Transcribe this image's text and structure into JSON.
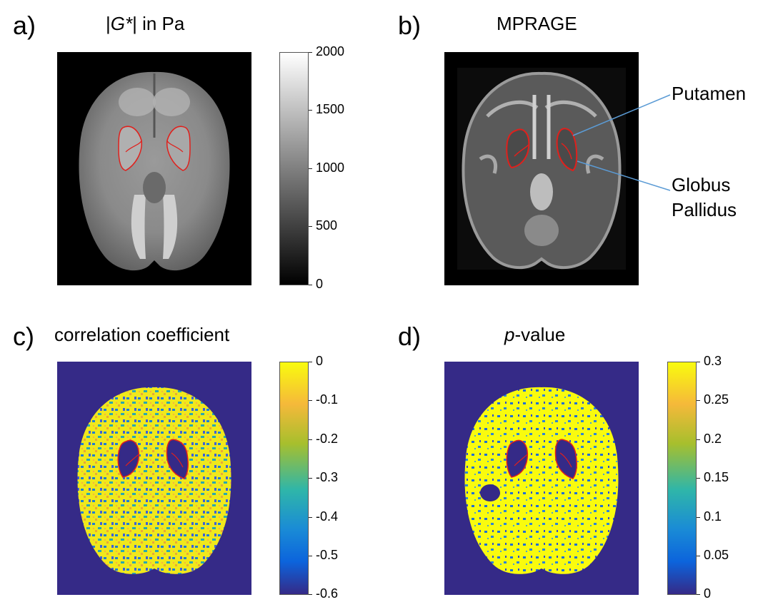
{
  "panels": {
    "a": {
      "letter": "a)",
      "title_prefix": "|",
      "title_symbol": "G*",
      "title_suffix": "| in Pa",
      "colorbar": {
        "ticks": [
          "2000",
          "1500",
          "1000",
          "500",
          "0"
        ],
        "colormap": "gray"
      }
    },
    "b": {
      "letter": "b)",
      "title": "MPRAGE",
      "annotations": {
        "putamen": "Putamen",
        "gp_line1": "Globus",
        "gp_line2": "Pallidus"
      }
    },
    "c": {
      "letter": "c)",
      "title": "correlation coefficient",
      "colorbar": {
        "ticks": [
          "0",
          "-0.1",
          "-0.2",
          "-0.3",
          "-0.4",
          "-0.5",
          "-0.6"
        ],
        "colormap": "parula"
      }
    },
    "d": {
      "letter": "d)",
      "title_symbol": "p",
      "title_suffix": "-value",
      "colorbar": {
        "ticks": [
          "0.3",
          "0.25",
          "0.2",
          "0.15",
          "0.1",
          "0.05",
          "0"
        ],
        "colormap": "parula"
      }
    }
  },
  "colors": {
    "roi_outline": "#e0201c",
    "parula_dark": "#352a87",
    "parula_yellow": "#f9fb0e",
    "leader_line": "#5b9bd5"
  }
}
